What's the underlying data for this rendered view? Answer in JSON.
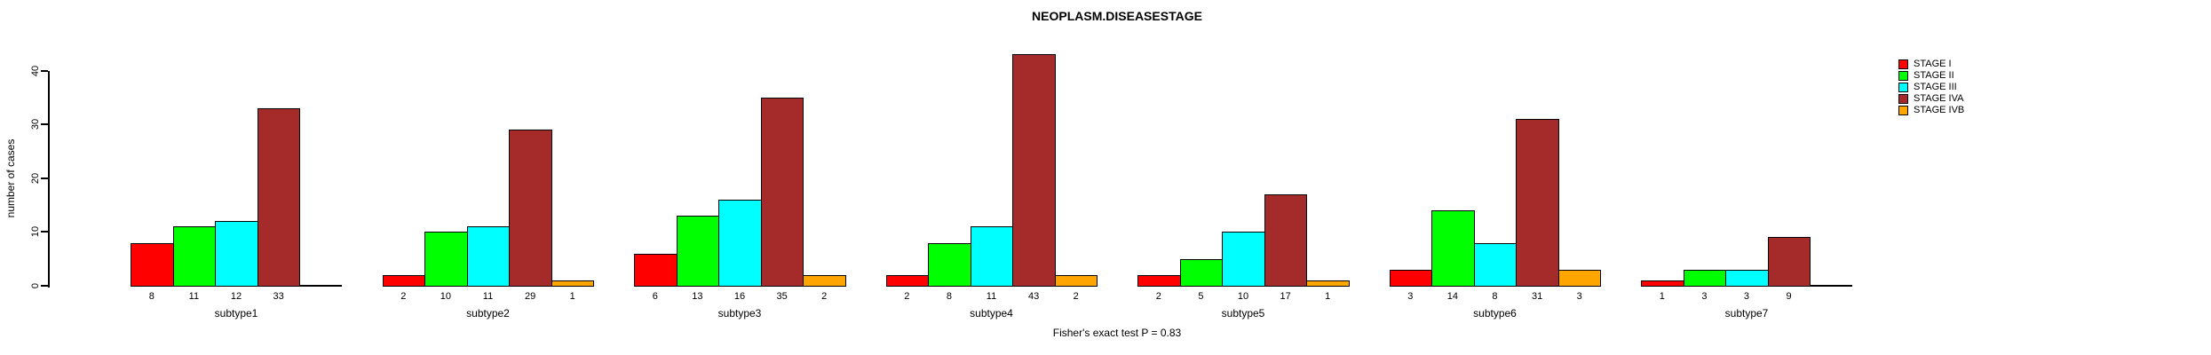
{
  "title": "NEOPLASM.DISEASESTAGE",
  "y_axis_label": "number of cases",
  "footer_annotation": "Fisher's exact test P = 0.83",
  "chart_data": {
    "type": "bar",
    "title": "NEOPLASM.DISEASESTAGE",
    "xlabel": "",
    "ylabel": "number of cases",
    "ylim": [
      0,
      40
    ],
    "yticks": [
      0,
      10,
      20,
      30,
      40
    ],
    "grid": false,
    "legend_position": "top-right",
    "annotation": "Fisher's exact test P = 0.83",
    "categories": [
      "subtype1",
      "subtype2",
      "subtype3",
      "subtype4",
      "subtype5",
      "subtype6",
      "subtype7"
    ],
    "series": [
      {
        "name": "STAGE I",
        "color": "#FF0000",
        "values": [
          8,
          2,
          6,
          2,
          2,
          3,
          1
        ]
      },
      {
        "name": "STAGE II",
        "color": "#00FF00",
        "values": [
          11,
          10,
          13,
          8,
          5,
          14,
          3
        ]
      },
      {
        "name": "STAGE III",
        "color": "#00FFFF",
        "values": [
          12,
          11,
          16,
          11,
          10,
          8,
          3
        ]
      },
      {
        "name": "STAGE IVA",
        "color": "#A52A2A",
        "values": [
          33,
          29,
          35,
          43,
          17,
          31,
          9
        ]
      },
      {
        "name": "STAGE IVB",
        "color": "#FFA500",
        "values": [
          null,
          1,
          2,
          2,
          1,
          3,
          null
        ]
      }
    ]
  }
}
